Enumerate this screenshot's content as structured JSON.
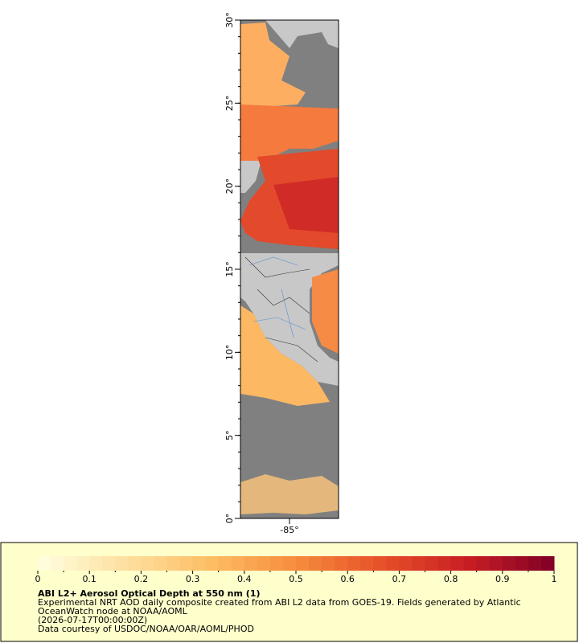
{
  "map": {
    "xlim": [
      -90,
      -80
    ],
    "ylim": [
      0,
      30
    ],
    "y_ticks": [
      {
        "value": 0,
        "label": "0°"
      },
      {
        "value": 5,
        "label": "5°"
      },
      {
        "value": 10,
        "label": "10°"
      },
      {
        "value": 15,
        "label": "15°"
      },
      {
        "value": 20,
        "label": "20°"
      },
      {
        "value": 25,
        "label": "25°"
      },
      {
        "value": 30,
        "label": "30°"
      }
    ],
    "x_ticks": [
      {
        "value": -85,
        "label": "-85°"
      }
    ]
  },
  "legend": {
    "colorbar_ticks": [
      0,
      0.1,
      0.2,
      0.3,
      0.4,
      0.5,
      0.6,
      0.7,
      0.8,
      0.9,
      1
    ],
    "title": "ABI L2+ Aerosol Optical Depth at 550 nm (1)",
    "lines": [
      "Experimental NRT AOD daily composite created from ABI L2 data from GOES-19. Fields generated by Atlantic",
      "OceanWatch node at NOAA/AOML",
      "(2026-07-17T00:00:00Z)",
      "Data courtesy of USDOC/NOAA/OAR/AOML/PHOD"
    ]
  }
}
